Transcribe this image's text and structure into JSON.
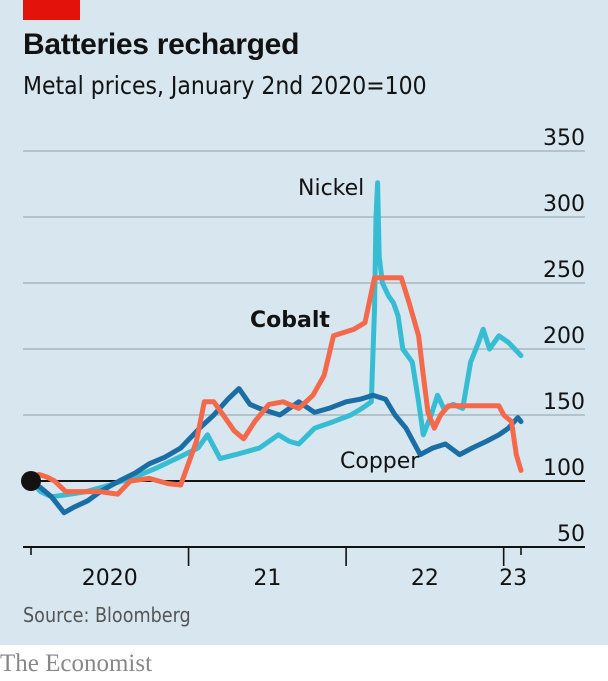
{
  "header": {
    "title": "Batteries recharged",
    "subtitle": "Metal prices, January 2nd 2020=100"
  },
  "footer": {
    "source": "Source: Bloomberg",
    "publisher": "The Economist"
  },
  "colors": {
    "background": "#d7e6ef",
    "brand": "#e3120b",
    "cobalt": "#f4694a",
    "nickel": "#36bdd3",
    "copper": "#1a6ea5",
    "gridline": "#a9b5bd",
    "baseline": "#121212"
  },
  "chart_data": {
    "type": "line",
    "title": "Batteries recharged",
    "subtitle": "Metal prices, January 2nd 2020=100",
    "xlabel": "",
    "ylabel": "",
    "x_unit": "year (fractional)",
    "xlim": [
      2020.0,
      2023.11
    ],
    "ylim": [
      50,
      350
    ],
    "yticks": [
      50,
      100,
      150,
      200,
      250,
      300,
      350
    ],
    "ytick_labels": [
      "50",
      "100",
      "150",
      "200",
      "250",
      "300",
      "350"
    ],
    "y_axis_side": "right",
    "baseline": 100,
    "xticks": [
      2020.0,
      2021.0,
      2022.0,
      2023.0,
      2023.11
    ],
    "xtick_labels": [
      {
        "label": "2020",
        "at": 2020.5
      },
      {
        "label": "21",
        "at": 2021.5
      },
      {
        "label": "22",
        "at": 2022.5
      },
      {
        "label": "23",
        "at": 2023.06
      }
    ],
    "grid": true,
    "legend": "inline labels",
    "start_marker": {
      "x": 2020.0,
      "y": 100
    },
    "series": [
      {
        "name": "Copper",
        "label_bold": false,
        "label_position": "below-right",
        "x": [
          2020.0,
          2020.06,
          2020.13,
          2020.21,
          2020.27,
          2020.36,
          2020.44,
          2020.56,
          2020.66,
          2020.75,
          2020.85,
          2020.95,
          2021.07,
          2021.16,
          2021.25,
          2021.32,
          2021.39,
          2021.45,
          2021.58,
          2021.7,
          2021.8,
          2021.89,
          2022.0,
          2022.09,
          2022.17,
          2022.25,
          2022.31,
          2022.38,
          2022.47,
          2022.55,
          2022.63,
          2022.72,
          2022.8,
          2022.89,
          2022.97,
          2023.03,
          2023.09,
          2023.11
        ],
        "values": [
          100,
          95,
          88,
          76,
          80,
          85,
          92,
          100,
          106,
          113,
          118,
          125,
          140,
          150,
          162,
          170,
          158,
          155,
          150,
          160,
          152,
          155,
          160,
          162,
          165,
          162,
          150,
          140,
          120,
          125,
          128,
          120,
          125,
          130,
          135,
          140,
          148,
          145
        ]
      },
      {
        "name": "Nickel",
        "label_bold": false,
        "label_position": "top-left of spike",
        "x": [
          2020.0,
          2020.06,
          2020.13,
          2020.25,
          2020.35,
          2020.5,
          2020.66,
          2020.8,
          2020.94,
          2021.06,
          2021.12,
          2021.2,
          2021.3,
          2021.45,
          2021.57,
          2021.64,
          2021.7,
          2021.8,
          2021.92,
          2022.03,
          2022.1,
          2022.16,
          2022.18,
          2022.19,
          2022.2,
          2022.21,
          2022.23,
          2022.27,
          2022.3,
          2022.33,
          2022.36,
          2022.42,
          2022.46,
          2022.49,
          2022.54,
          2022.58,
          2022.62,
          2022.68,
          2022.74,
          2022.79,
          2022.84,
          2022.87,
          2022.91,
          2022.97,
          2023.03,
          2023.07,
          2023.11
        ],
        "values": [
          100,
          92,
          88,
          90,
          92,
          97,
          103,
          110,
          118,
          125,
          135,
          117,
          120,
          125,
          135,
          130,
          128,
          140,
          145,
          150,
          155,
          160,
          230,
          300,
          326,
          270,
          250,
          240,
          235,
          225,
          200,
          190,
          160,
          135,
          150,
          165,
          155,
          158,
          155,
          190,
          205,
          215,
          200,
          210,
          205,
          200,
          195
        ]
      },
      {
        "name": "Cobalt",
        "label_bold": true,
        "label_position": "left of curve",
        "x": [
          2020.0,
          2020.05,
          2020.1,
          2020.15,
          2020.22,
          2020.44,
          2020.55,
          2020.63,
          2020.75,
          2020.87,
          2020.95,
          2021.05,
          2021.1,
          2021.16,
          2021.22,
          2021.29,
          2021.35,
          2021.42,
          2021.51,
          2021.6,
          2021.7,
          2021.79,
          2021.86,
          2021.92,
          2022.05,
          2022.12,
          2022.18,
          2022.24,
          2022.35,
          2022.4,
          2022.46,
          2022.49,
          2022.52,
          2022.56,
          2022.6,
          2022.65,
          2022.97,
          2023.0,
          2023.05,
          2023.08,
          2023.1,
          2023.11
        ],
        "values": [
          100,
          105,
          103,
          100,
          92,
          92,
          90,
          100,
          102,
          98,
          97,
          130,
          160,
          160,
          150,
          138,
          132,
          145,
          158,
          160,
          155,
          165,
          180,
          210,
          215,
          220,
          254,
          254,
          254,
          235,
          210,
          180,
          152,
          140,
          150,
          157,
          157,
          150,
          145,
          120,
          112,
          108
        ]
      }
    ]
  }
}
